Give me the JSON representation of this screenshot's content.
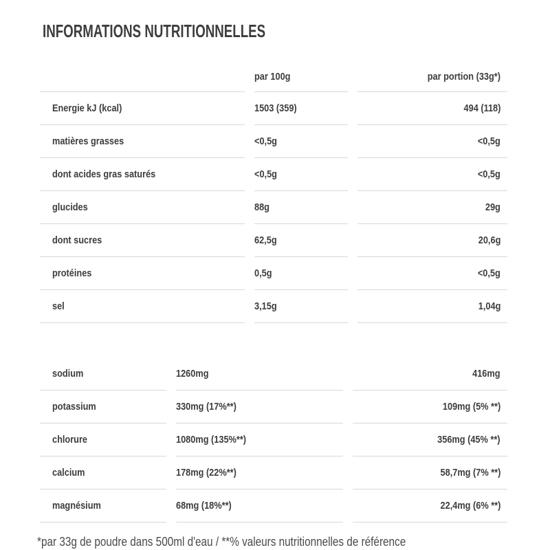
{
  "title": "INFORMATIONS NUTRITIONNELLES",
  "table": {
    "col_per100": "par 100g",
    "col_portion": "par portion (33g*)",
    "main_rows": [
      {
        "label": "Energie kJ (kcal)",
        "per100": "1503 (359)",
        "portion": "494 (118)"
      },
      {
        "label": "matières grasses",
        "per100": "<0,5g",
        "portion": "<0,5g"
      },
      {
        "label": "dont acides gras saturés",
        "per100": "<0,5g",
        "portion": "<0,5g"
      },
      {
        "label": "glucides",
        "per100": "88g",
        "portion": "29g"
      },
      {
        "label": "dont sucres",
        "per100": "62,5g",
        "portion": "20,6g"
      },
      {
        "label": "protéines",
        "per100": "0,5g",
        "portion": "<0,5g"
      },
      {
        "label": "sel",
        "per100": "3,15g",
        "portion": "1,04g"
      }
    ],
    "mineral_rows": [
      {
        "label": "sodium",
        "per100": "1260mg",
        "portion": "416mg"
      },
      {
        "label": "potassium",
        "per100": "330mg (17%**)",
        "portion": "109mg (5% **)"
      },
      {
        "label": "chlorure",
        "per100": "1080mg (135%**)",
        "portion": "356mg (45% **)"
      },
      {
        "label": "calcium",
        "per100": "178mg (22%**)",
        "portion": "58,7mg (7% **)"
      },
      {
        "label": "magnésium",
        "per100": "68mg (18%**)",
        "portion": "22,4mg (6% **)"
      }
    ]
  },
  "footnote": "*par 33g de poudre dans 500ml d'eau / **% valeurs nutritionnelles de référence",
  "colors": {
    "background": "#ffffff",
    "text": "#3d3d3d",
    "divider_line": "#d8d8d8",
    "footnote_text": "#4a4a4a"
  }
}
